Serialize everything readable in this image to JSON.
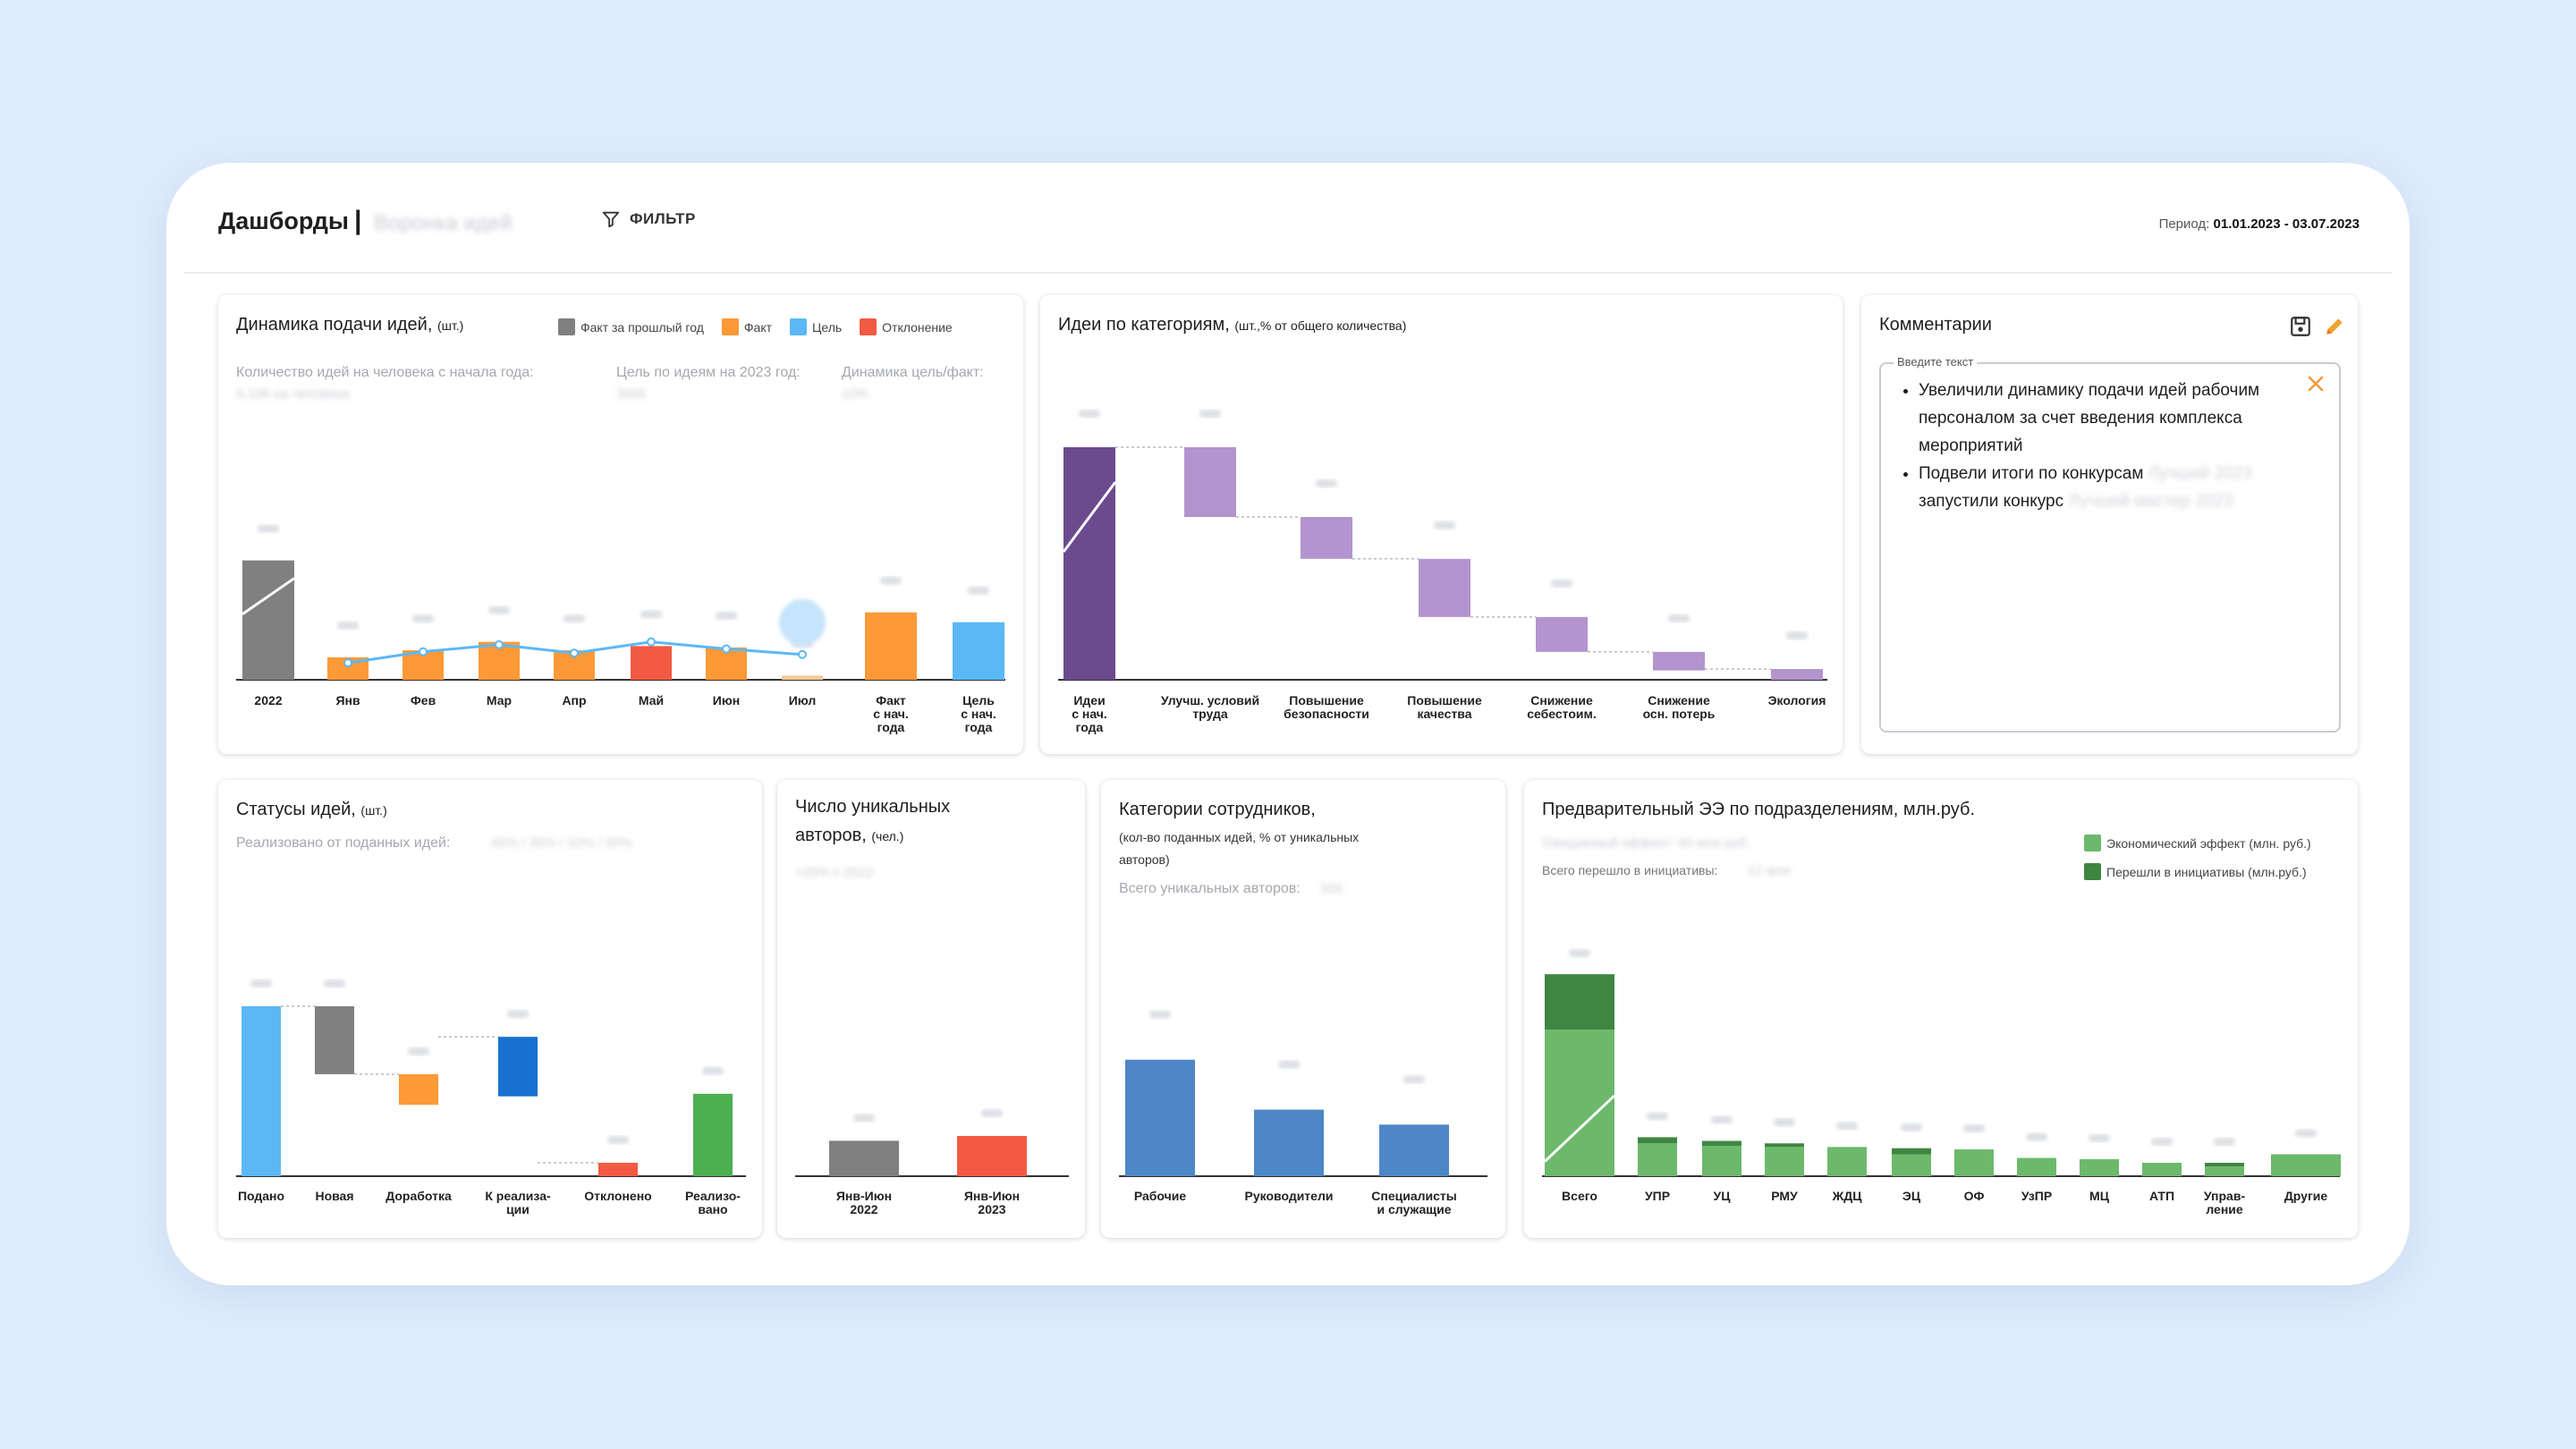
{
  "header": {
    "title": "Дашборды",
    "separator": "|",
    "subtitle": "Воронка идей",
    "filter_label": "ФИЛЬТР",
    "period_label": "Период:",
    "period_value": "01.01.2023 - 03.07.2023"
  },
  "colors": {
    "gray": "#808080",
    "orange": "#fd9937",
    "blue": "#5bb8f5",
    "red": "#f25a43",
    "purple_dark": "#6c4a8e",
    "purple": "#b394cf",
    "green": "#4caf50",
    "green_light": "#6cb96c",
    "green_dark": "#3f8642",
    "steel": "#4d87c7",
    "royal": "#1771d0"
  },
  "dynamics": {
    "title": "Динамика подачи идей,",
    "unit": "(шт.)",
    "legend": [
      "Факт за прошлый год",
      "Факт",
      "Цель",
      "Отклонение"
    ],
    "kpi_labels": [
      "Количество идей на человека с начала года:",
      "Цель по идеям на 2023 год:",
      "Динамика цель/факт:"
    ],
    "kpi_values": [
      "0.108 на человека",
      "3000",
      "10%"
    ],
    "categories": [
      "2022",
      "Янв",
      "Фев",
      "Мар",
      "Апр",
      "Май",
      "Июн",
      "Июл",
      "Факт\nс нач.\nгода",
      "Цель\nс нач.\nгода"
    ]
  },
  "categories_chart": {
    "title": "Идеи по категориям,",
    "unit": "(шт.,% от общего количества)",
    "categories": [
      "Идеи\nс нач.\nгода",
      "Улучш. условий\nтруда",
      "Повышение\nбезопасности",
      "Повышение\nкачества",
      "Снижение\nсебестоим.",
      "Снижение\nосн. потерь",
      "Экология"
    ]
  },
  "comments": {
    "title": "Комментарии",
    "field_label": "Введите текст",
    "items": [
      "Увеличили динамику подачи идей рабочим персоналом за счет введения комплекса мероприятий",
      "Подвели итоги по конкурсам"
    ],
    "item2_blur": "Лучший 2023",
    "item3": "запустили конкурс",
    "item3_blur": "Лучший мастер 2023"
  },
  "statuses": {
    "title": "Статусы идей,",
    "unit": "(шт.)",
    "kpi_label": "Реализовано от поданных идей:",
    "kpi_value": "45% / 35% / 10% / 20%",
    "categories": [
      "Подано",
      "Новая",
      "Доработка",
      "К реализа-\nции",
      "Отклонено",
      "Реализо-\nвано"
    ]
  },
  "authors": {
    "title": "Число уникальных",
    "title2": "авторов,",
    "unit": "(чел.)",
    "kpi_value": "+20% к 2022",
    "categories": [
      "Янв-Июн\n2022",
      "Янв-Июн\n2023"
    ]
  },
  "employees": {
    "title": "Категории сотрудников,",
    "subtitle1": "(кол-во поданных идей, % от уникальных",
    "subtitle2": "авторов)",
    "kpi_label": "Всего уникальных авторов:",
    "kpi_value": "320",
    "categories": [
      "Рабочие",
      "Руководители",
      "Специалисты\nи служащие"
    ]
  },
  "effect": {
    "title": "Предварительный ЭЭ по подразделениям, млн.руб.",
    "kpi_blur": "Ожидаемый эффект: 40 млн.руб.",
    "kpi_label": "Всего перешло в инициативы:",
    "kpi_value": "12 млн",
    "legend": [
      "Экономический эффект (млн. руб.)",
      "Перешли в инициативы (млн.руб.)"
    ],
    "categories": [
      "Всего",
      "УПР",
      "УЦ",
      "РМУ",
      "ЖДЦ",
      "ЭЦ",
      "ОФ",
      "УзПР",
      "МЦ",
      "АТП",
      "Управ-\nление",
      "Другие"
    ]
  },
  "chart_data": [
    {
      "type": "bar",
      "title": "Динамика подачи идей,",
      "categories": [
        "2022",
        "Янв",
        "Фев",
        "Мар",
        "Апр",
        "Май",
        "Июн",
        "Июл",
        "Факт с нач. года",
        "Цель с нач. года"
      ],
      "series": [
        {
          "name": "Факт за прошлый год",
          "values": [
            85,
            null,
            null,
            null,
            null,
            null,
            null,
            null,
            null,
            null
          ]
        },
        {
          "name": "Факт",
          "values": [
            null,
            16,
            21,
            27,
            21,
            null,
            23,
            3,
            48,
            null
          ]
        },
        {
          "name": "Отклонение",
          "values": [
            null,
            null,
            null,
            null,
            null,
            24,
            null,
            null,
            null,
            null
          ]
        },
        {
          "name": "Цель",
          "values": [
            null,
            12,
            20,
            25,
            19,
            27,
            22,
            18,
            null,
            41
          ]
        }
      ],
      "ylim": [
        0,
        100
      ]
    },
    {
      "type": "bar",
      "title": "Идеи по категориям,",
      "categories": [
        "Идеи с нач. года",
        "Улучш. условий труда",
        "Повышение безопасности",
        "Повышение качества",
        "Снижение себестоим.",
        "Снижение осн. потерь",
        "Экология"
      ],
      "values": [
        100,
        30,
        18,
        25,
        15,
        8,
        5
      ],
      "ylim": [
        0,
        100
      ]
    },
    {
      "type": "bar",
      "title": "Статусы идей,",
      "categories": [
        "Подано",
        "Новая",
        "Доработка",
        "К реализации",
        "Отклонено",
        "Реализовано"
      ],
      "values": [
        100,
        40,
        18,
        35,
        8,
        50
      ],
      "ylim": [
        0,
        100
      ]
    },
    {
      "type": "bar",
      "title": "Число уникальных авторов,",
      "categories": [
        "Янв-Июн 2022",
        "Янв-Июн 2023"
      ],
      "values": [
        22,
        25
      ],
      "ylim": [
        0,
        100
      ]
    },
    {
      "type": "bar",
      "title": "Категории сотрудников,",
      "categories": [
        "Рабочие",
        "Руководители",
        "Специалисты и служащие"
      ],
      "values": [
        70,
        40,
        31
      ],
      "ylim": [
        0,
        100
      ]
    },
    {
      "type": "bar",
      "title": "Предварительный ЭЭ по подразделениям, млн.руб.",
      "categories": [
        "Всего",
        "УПР",
        "УЦ",
        "РМУ",
        "ЖДЦ",
        "ЭЦ",
        "ОФ",
        "УзПР",
        "МЦ",
        "АТП",
        "Управление",
        "Другие"
      ],
      "series": [
        {
          "name": "Экономический эффект (млн. руб.)",
          "values": [
            100,
            27,
            25,
            24,
            24,
            18,
            22,
            15,
            14,
            11,
            8,
            18
          ]
        },
        {
          "name": "Перешли в инициативы (млн.руб.)",
          "values": [
            25,
            5,
            4,
            3,
            0,
            5,
            0,
            0,
            0,
            0,
            3,
            0
          ]
        }
      ],
      "ylim": [
        0,
        150
      ]
    }
  ]
}
